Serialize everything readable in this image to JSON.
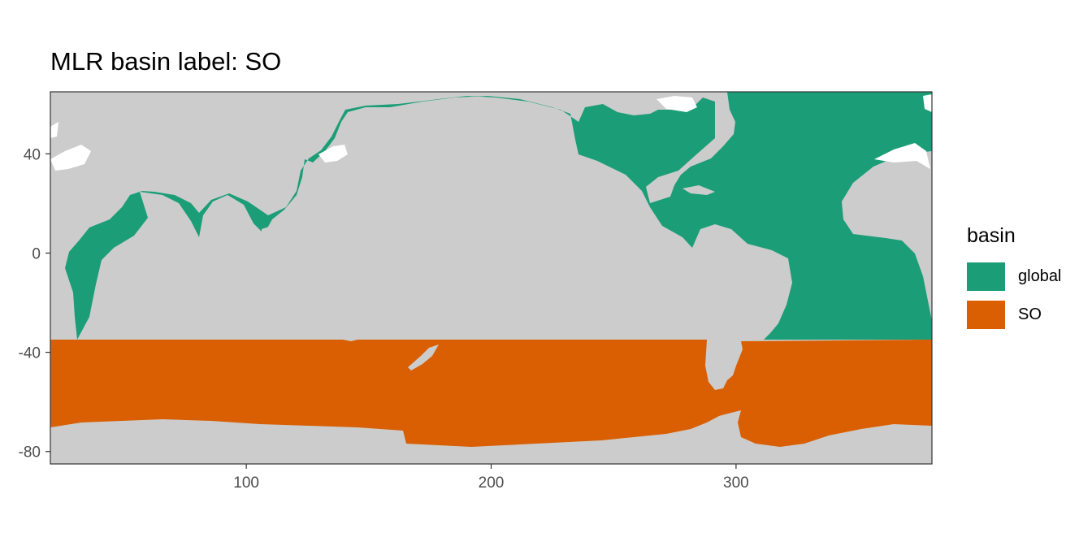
{
  "title": "MLR basin label: SO",
  "colors": {
    "land": "#cccccc",
    "ice": "#ffffff",
    "global": "#1b9e77",
    "SO": "#d95f02",
    "panel_border": "#333333"
  },
  "chart_data": {
    "type": "map",
    "title": "MLR basin label: SO",
    "xlabel": "",
    "ylabel": "",
    "xlim": [
      20,
      380
    ],
    "ylim": [
      -85,
      65
    ],
    "x_ticks": [
      100,
      200,
      300
    ],
    "y_ticks": [
      40,
      0,
      -40,
      -80
    ],
    "grid": false,
    "legend_position": "right",
    "legend": {
      "title": "basin",
      "entries": [
        "global",
        "SO"
      ]
    },
    "so_boundary_lat": -35
  }
}
